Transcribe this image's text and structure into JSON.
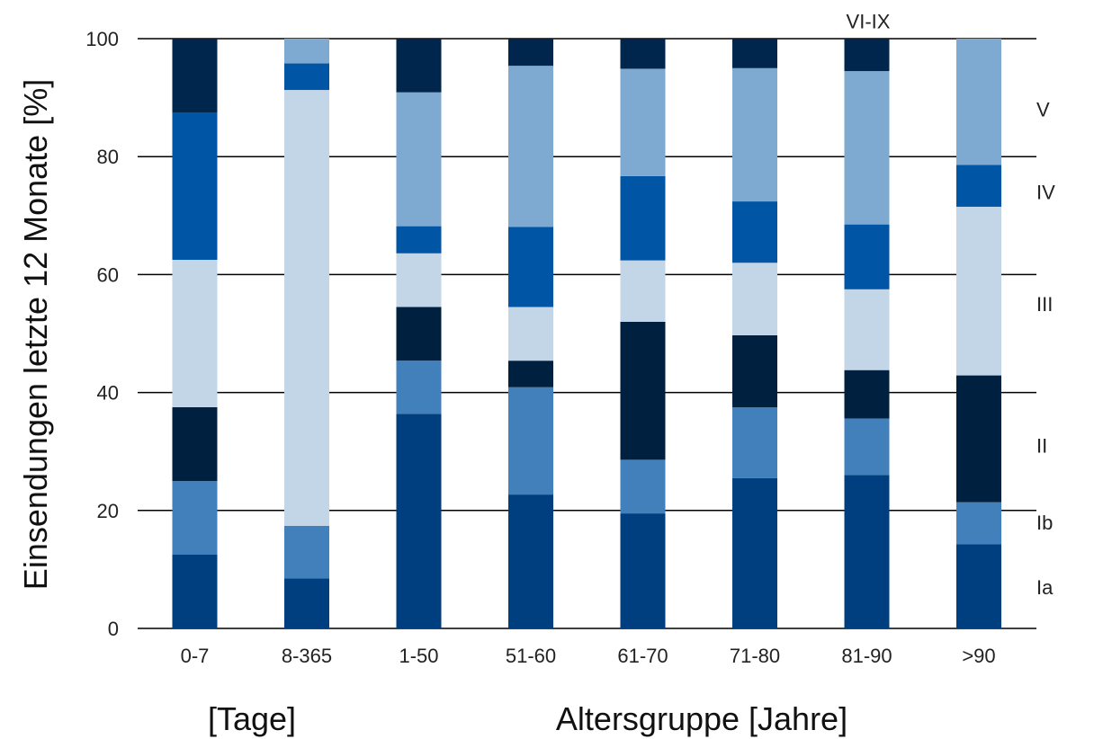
{
  "chart_data": {
    "type": "bar",
    "stacked": true,
    "categories": [
      "0-7",
      "8-365",
      "1-50",
      "51-60",
      "61-70",
      "71-80",
      "81-90",
      ">90"
    ],
    "ylabel": "Einsendungen letzte 12 Monate [%]",
    "xlabel_left": "[Tage]",
    "xlabel_right": "Altersgruppe [Jahre]",
    "ylim": [
      0,
      100
    ],
    "yticks": [
      "0",
      "20",
      "40",
      "60",
      "80",
      "100"
    ],
    "grid": true,
    "legend_labels": [
      {
        "name": "Ia",
        "y": 7
      },
      {
        "name": "Ib",
        "y": 18
      },
      {
        "name": "II",
        "y": 31
      },
      {
        "name": "III",
        "y": 55
      },
      {
        "name": "IV",
        "y": 74
      },
      {
        "name": "V",
        "y": 88
      },
      {
        "name": "VI-IX",
        "y": 103
      }
    ],
    "series": [
      {
        "name": "Ia",
        "color": "#003f7f",
        "values": [
          12.5,
          8.5,
          36.4,
          22.7,
          19.5,
          25.5,
          26.0,
          14.3
        ]
      },
      {
        "name": "Ib",
        "color": "#4180bb",
        "values": [
          12.5,
          8.9,
          9.0,
          18.2,
          9.1,
          12.0,
          9.6,
          7.1
        ]
      },
      {
        "name": "II",
        "color": "#00203f",
        "values": [
          12.5,
          0,
          9.1,
          4.5,
          23.4,
          12.2,
          8.2,
          21.5
        ]
      },
      {
        "name": "III",
        "color": "#c2d6e8",
        "values": [
          25.0,
          73.9,
          9.1,
          9.1,
          10.4,
          12.3,
          13.7,
          28.6
        ]
      },
      {
        "name": "IV",
        "color": "#0055a4",
        "values": [
          25.0,
          4.5,
          4.6,
          13.6,
          14.3,
          10.4,
          11.0,
          7.1
        ]
      },
      {
        "name": "V",
        "color": "#7ea9d1",
        "values": [
          0,
          4.2,
          22.7,
          27.3,
          18.2,
          22.6,
          26.0,
          21.4
        ]
      },
      {
        "name": "VI-IX",
        "color": "#00264d",
        "values": [
          12.5,
          0,
          9.1,
          4.6,
          5.1,
          5.0,
          5.5,
          0
        ]
      }
    ]
  }
}
